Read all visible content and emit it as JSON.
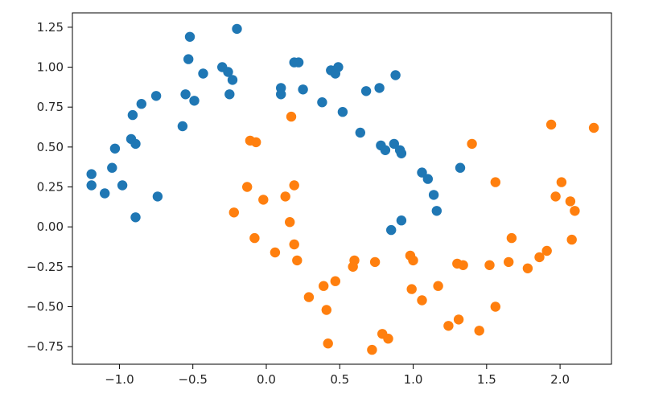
{
  "chart_data": {
    "type": "scatter",
    "title": "",
    "xlabel": "",
    "ylabel": "",
    "xlim": [
      -1.32,
      2.35
    ],
    "ylim": [
      -0.86,
      1.34
    ],
    "grid": false,
    "legend": "none",
    "x_ticks": [
      {
        "value": -1.0,
        "label": "−1.0"
      },
      {
        "value": -0.5,
        "label": "−0.5"
      },
      {
        "value": 0.0,
        "label": "0.0"
      },
      {
        "value": 0.5,
        "label": "0.5"
      },
      {
        "value": 1.0,
        "label": "1.0"
      },
      {
        "value": 1.5,
        "label": "1.5"
      },
      {
        "value": 2.0,
        "label": "2.0"
      }
    ],
    "y_ticks": [
      {
        "value": -0.75,
        "label": "−0.75"
      },
      {
        "value": -0.5,
        "label": "−0.50"
      },
      {
        "value": -0.25,
        "label": "−0.25"
      },
      {
        "value": 0.0,
        "label": "0.00"
      },
      {
        "value": 0.25,
        "label": "0.25"
      },
      {
        "value": 0.5,
        "label": "0.50"
      },
      {
        "value": 0.75,
        "label": "0.75"
      },
      {
        "value": 1.0,
        "label": "1.00"
      },
      {
        "value": 1.25,
        "label": "1.25"
      }
    ],
    "series": [
      {
        "color": "#1f77b4",
        "points": [
          [
            -1.19,
            0.33
          ],
          [
            -1.19,
            0.26
          ],
          [
            -1.1,
            0.21
          ],
          [
            -1.05,
            0.37
          ],
          [
            -1.03,
            0.49
          ],
          [
            -0.98,
            0.26
          ],
          [
            -0.92,
            0.55
          ],
          [
            -0.91,
            0.7
          ],
          [
            -0.89,
            0.52
          ],
          [
            -0.89,
            0.06
          ],
          [
            -0.85,
            0.77
          ],
          [
            -0.75,
            0.82
          ],
          [
            -0.74,
            0.19
          ],
          [
            -0.57,
            0.63
          ],
          [
            -0.55,
            0.83
          ],
          [
            -0.53,
            1.05
          ],
          [
            -0.52,
            1.19
          ],
          [
            -0.49,
            0.79
          ],
          [
            -0.43,
            0.96
          ],
          [
            -0.3,
            1.0
          ],
          [
            -0.26,
            0.97
          ],
          [
            -0.25,
            0.83
          ],
          [
            -0.23,
            0.92
          ],
          [
            -0.2,
            1.24
          ],
          [
            0.1,
            0.87
          ],
          [
            0.1,
            0.83
          ],
          [
            0.19,
            1.03
          ],
          [
            0.22,
            1.03
          ],
          [
            0.25,
            0.86
          ],
          [
            0.38,
            0.78
          ],
          [
            0.44,
            0.98
          ],
          [
            0.47,
            0.96
          ],
          [
            0.49,
            1.0
          ],
          [
            0.52,
            0.72
          ],
          [
            0.64,
            0.59
          ],
          [
            0.68,
            0.85
          ],
          [
            0.77,
            0.87
          ],
          [
            0.78,
            0.51
          ],
          [
            0.81,
            0.48
          ],
          [
            0.85,
            -0.02
          ],
          [
            0.87,
            0.52
          ],
          [
            0.88,
            0.95
          ],
          [
            0.91,
            0.48
          ],
          [
            0.92,
            0.46
          ],
          [
            0.92,
            0.04
          ],
          [
            1.06,
            0.34
          ],
          [
            1.1,
            0.3
          ],
          [
            1.14,
            0.2
          ],
          [
            1.16,
            0.1
          ],
          [
            1.32,
            0.37
          ]
        ]
      },
      {
        "color": "#ff7f0e",
        "points": [
          [
            -0.22,
            0.09
          ],
          [
            -0.13,
            0.25
          ],
          [
            -0.11,
            0.54
          ],
          [
            -0.07,
            0.53
          ],
          [
            -0.08,
            -0.07
          ],
          [
            -0.02,
            0.17
          ],
          [
            0.06,
            -0.16
          ],
          [
            0.13,
            0.19
          ],
          [
            0.16,
            0.03
          ],
          [
            0.17,
            0.69
          ],
          [
            0.19,
            0.26
          ],
          [
            0.19,
            -0.11
          ],
          [
            0.21,
            -0.21
          ],
          [
            0.29,
            -0.44
          ],
          [
            0.39,
            -0.37
          ],
          [
            0.41,
            -0.52
          ],
          [
            0.42,
            -0.73
          ],
          [
            0.47,
            -0.34
          ],
          [
            0.59,
            -0.25
          ],
          [
            0.6,
            -0.21
          ],
          [
            0.72,
            -0.77
          ],
          [
            0.74,
            -0.22
          ],
          [
            0.79,
            -0.67
          ],
          [
            0.83,
            -0.7
          ],
          [
            0.98,
            -0.18
          ],
          [
            1.0,
            -0.21
          ],
          [
            0.99,
            -0.39
          ],
          [
            1.06,
            -0.46
          ],
          [
            1.17,
            -0.37
          ],
          [
            1.24,
            -0.62
          ],
          [
            1.3,
            -0.23
          ],
          [
            1.31,
            -0.58
          ],
          [
            1.34,
            -0.24
          ],
          [
            1.4,
            0.52
          ],
          [
            1.45,
            -0.65
          ],
          [
            1.52,
            -0.24
          ],
          [
            1.56,
            0.28
          ],
          [
            1.56,
            -0.5
          ],
          [
            1.65,
            -0.22
          ],
          [
            1.67,
            -0.07
          ],
          [
            1.78,
            -0.26
          ],
          [
            1.86,
            -0.19
          ],
          [
            1.91,
            -0.15
          ],
          [
            1.94,
            0.64
          ],
          [
            1.97,
            0.19
          ],
          [
            2.01,
            0.28
          ],
          [
            2.07,
            0.16
          ],
          [
            2.08,
            -0.08
          ],
          [
            2.1,
            0.1
          ],
          [
            2.23,
            0.62
          ]
        ]
      }
    ]
  }
}
